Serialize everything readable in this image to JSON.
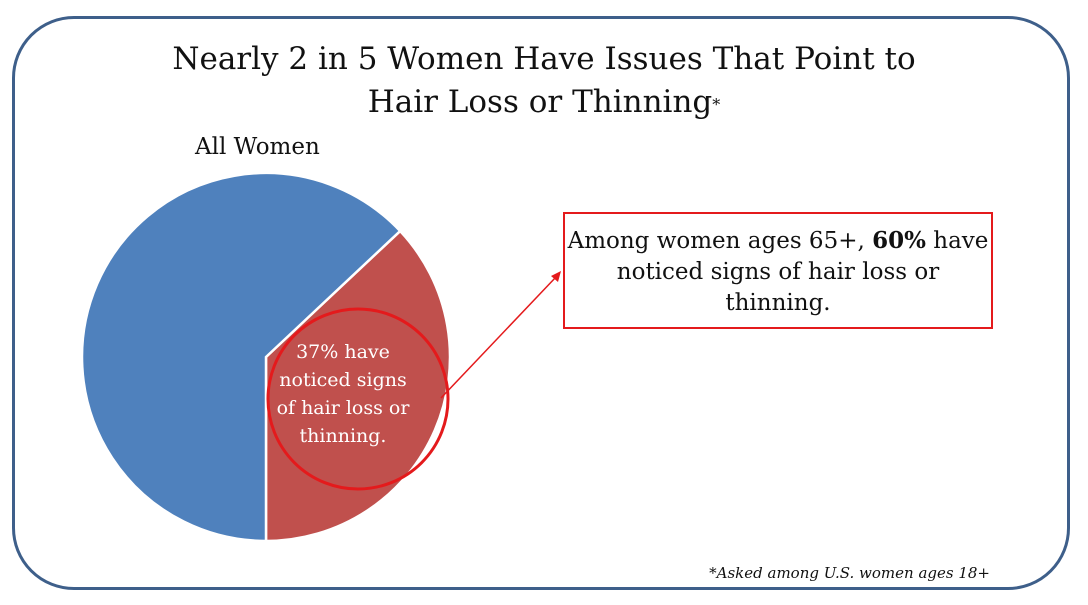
{
  "header": {
    "title_line1": "Nearly 2 in 5 Women Have Issues That Point to",
    "title_line2": "Hair Loss or Thinning",
    "title_marker": "*"
  },
  "chart_data": {
    "type": "pie",
    "title": "All Women",
    "slices": [
      {
        "label": "37% have noticed signs of hair loss or thinning.",
        "value": 37,
        "color": "#c0504d"
      },
      {
        "label": "",
        "value": 63,
        "color": "#4f81bd"
      }
    ]
  },
  "slice_label": {
    "line1": "37% have",
    "line2": "noticed signs",
    "line3": "of hair loss or",
    "line4": "thinning."
  },
  "callout": {
    "text_before": "Among women ages 65+, ",
    "highlight": "60%",
    "text_after": " have noticed signs of hair loss or thinning."
  },
  "footnote": "*Asked among U.S. women ages 18+",
  "colors": {
    "accent": "#e41a1c",
    "frame": "#3e5f8a"
  }
}
